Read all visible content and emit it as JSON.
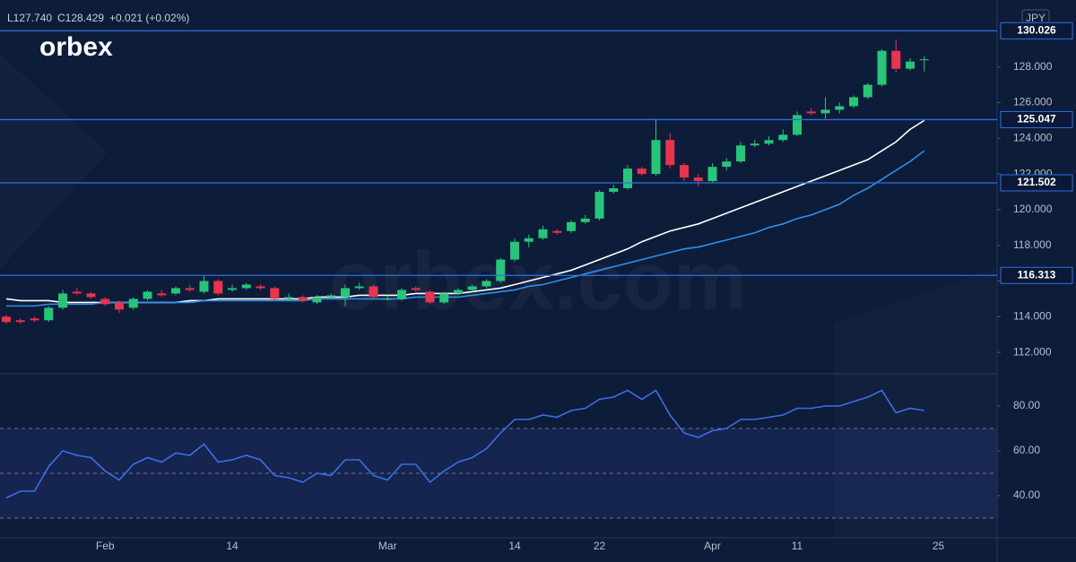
{
  "chart_data": [
    {
      "type": "candlestick",
      "ohlc": [
        "L127.740",
        "C128.429",
        "+0.021 (+0.02%)"
      ],
      "logo": "orbex",
      "watermark": "orbex.com",
      "currency": "JPY",
      "categories": [
        null,
        null,
        null,
        null,
        null,
        null,
        null,
        "Feb",
        null,
        null,
        null,
        null,
        null,
        null,
        null,
        null,
        "14",
        null,
        null,
        null,
        null,
        null,
        null,
        null,
        null,
        null,
        null,
        "Mar",
        null,
        null,
        null,
        null,
        null,
        null,
        null,
        null,
        "14",
        null,
        null,
        null,
        null,
        null,
        "22",
        null,
        null,
        null,
        null,
        null,
        null,
        null,
        "Apr",
        null,
        null,
        null,
        null,
        null,
        "11",
        null,
        null,
        null,
        null,
        null,
        null,
        null,
        null,
        null,
        "25"
      ],
      "open": [
        114.0,
        113.8,
        113.9,
        113.8,
        114.5,
        115.4,
        115.3,
        115.0,
        114.8,
        114.5,
        115.0,
        115.3,
        115.3,
        115.6,
        115.4,
        116.0,
        115.5,
        115.6,
        115.7,
        115.6,
        115.0,
        115.1,
        114.8,
        115.1,
        115.1,
        115.6,
        115.7,
        115.0,
        115.0,
        115.6,
        115.4,
        114.8,
        115.3,
        115.5,
        115.7,
        116.0,
        117.2,
        118.2,
        118.4,
        118.8,
        118.8,
        119.3,
        119.5,
        121.0,
        121.2,
        122.3,
        122.0,
        123.9,
        122.5,
        121.8,
        121.6,
        122.4,
        122.7,
        123.6,
        123.7,
        123.9,
        124.2,
        125.5,
        125.4,
        125.6,
        125.8,
        126.3,
        127.0,
        128.9,
        127.9,
        128.4,
        null
      ],
      "high": [
        114.1,
        113.9,
        114.0,
        114.6,
        115.5,
        115.6,
        115.4,
        115.1,
        114.9,
        115.1,
        115.5,
        115.5,
        115.7,
        115.8,
        116.3,
        116.1,
        115.8,
        115.9,
        115.8,
        115.7,
        115.3,
        115.2,
        115.2,
        115.3,
        115.8,
        115.9,
        115.8,
        115.2,
        115.6,
        115.7,
        115.5,
        115.4,
        115.6,
        115.8,
        116.1,
        117.3,
        118.4,
        118.6,
        119.1,
        118.9,
        119.4,
        119.7,
        121.1,
        121.4,
        122.5,
        122.4,
        125.1,
        124.3,
        122.6,
        122.0,
        122.6,
        122.9,
        123.8,
        123.9,
        124.1,
        124.5,
        125.5,
        125.7,
        126.3,
        126.0,
        126.4,
        127.1,
        129.0,
        129.5,
        128.5,
        128.6,
        null
      ],
      "low": [
        113.6,
        113.6,
        113.7,
        113.7,
        114.4,
        115.2,
        115.0,
        114.6,
        114.2,
        114.4,
        114.9,
        115.1,
        115.2,
        115.4,
        115.3,
        115.2,
        115.4,
        115.5,
        115.5,
        114.9,
        114.9,
        114.8,
        114.7,
        115.0,
        114.6,
        115.5,
        115.0,
        114.9,
        114.9,
        115.4,
        114.7,
        114.7,
        115.2,
        115.4,
        115.6,
        115.9,
        117.1,
        117.9,
        118.3,
        118.6,
        118.7,
        119.2,
        119.4,
        120.9,
        121.1,
        121.9,
        121.9,
        122.3,
        121.6,
        121.3,
        121.5,
        122.2,
        122.6,
        123.5,
        123.6,
        123.8,
        124.1,
        125.3,
        125.1,
        125.4,
        125.7,
        126.2,
        126.9,
        127.7,
        127.8,
        127.74,
        null
      ],
      "close": [
        113.7,
        113.7,
        113.8,
        114.5,
        115.3,
        115.3,
        115.1,
        114.7,
        114.4,
        115.0,
        115.4,
        115.2,
        115.6,
        115.5,
        116.0,
        115.3,
        115.6,
        115.8,
        115.6,
        115.0,
        115.1,
        114.9,
        115.1,
        115.2,
        115.6,
        115.7,
        115.1,
        115.0,
        115.5,
        115.5,
        114.8,
        115.3,
        115.5,
        115.7,
        116.0,
        117.2,
        118.2,
        118.4,
        118.9,
        118.7,
        119.3,
        119.5,
        121.0,
        121.2,
        122.3,
        122.0,
        123.9,
        122.5,
        121.8,
        121.6,
        122.4,
        122.7,
        123.6,
        123.7,
        123.9,
        124.2,
        125.3,
        125.4,
        125.6,
        125.8,
        126.3,
        127.0,
        128.9,
        127.9,
        128.3,
        128.429,
        null
      ],
      "up_color": "#27c47a",
      "down_color": "#e8344e",
      "series": [
        {
          "color": "#ffffff",
          "values": [
            115.0,
            114.9,
            114.9,
            114.9,
            114.8,
            114.8,
            114.8,
            114.8,
            114.8,
            114.8,
            114.8,
            114.8,
            114.8,
            114.9,
            114.9,
            115.0,
            115.0,
            115.0,
            115.0,
            115.0,
            115.0,
            115.0,
            115.1,
            115.1,
            115.1,
            115.2,
            115.2,
            115.2,
            115.2,
            115.3,
            115.3,
            115.3,
            115.3,
            115.4,
            115.5,
            115.6,
            115.8,
            116.0,
            116.2,
            116.4,
            116.6,
            116.9,
            117.2,
            117.5,
            117.8,
            118.2,
            118.5,
            118.8,
            119.0,
            119.2,
            119.5,
            119.8,
            120.1,
            120.4,
            120.7,
            121.0,
            121.3,
            121.6,
            121.9,
            122.2,
            122.5,
            122.8,
            123.3,
            123.8,
            124.5,
            125.0,
            null
          ]
        },
        {
          "color": "#2f8fe8",
          "values": [
            114.6,
            114.6,
            114.6,
            114.7,
            114.7,
            114.7,
            114.7,
            114.8,
            114.8,
            114.8,
            114.8,
            114.8,
            114.8,
            114.8,
            114.9,
            114.9,
            114.9,
            114.9,
            114.9,
            114.9,
            114.9,
            114.9,
            115.0,
            115.0,
            115.0,
            115.0,
            115.0,
            115.0,
            115.0,
            115.1,
            115.1,
            115.1,
            115.1,
            115.2,
            115.3,
            115.4,
            115.5,
            115.7,
            115.8,
            116.0,
            116.2,
            116.4,
            116.6,
            116.8,
            117.0,
            117.2,
            117.4,
            117.6,
            117.8,
            117.9,
            118.1,
            118.3,
            118.5,
            118.7,
            119.0,
            119.2,
            119.5,
            119.7,
            120.0,
            120.3,
            120.8,
            121.2,
            121.7,
            122.2,
            122.7,
            123.3,
            null
          ]
        }
      ],
      "levels": [
        130.026,
        125.047,
        121.502,
        116.313
      ],
      "level_color": "#2f6fe0",
      "ylim": [
        110.8,
        131.5
      ],
      "yticks": [
        {
          "value": 112,
          "label": "112.000"
        },
        {
          "value": 114,
          "label": "114.000"
        },
        {
          "value": 116,
          "label": "116.000"
        },
        {
          "value": 118,
          "label": "118.000"
        },
        {
          "value": 120,
          "label": "120.000"
        },
        {
          "value": 122,
          "label": "122.000"
        },
        {
          "value": 124,
          "label": "124.000"
        },
        {
          "value": 126,
          "label": "126.000"
        },
        {
          "value": 128,
          "label": "128.000"
        }
      ]
    },
    {
      "type": "line",
      "color": "#3d6ee8",
      "values": [
        39,
        42,
        42,
        53,
        60,
        58,
        57,
        51,
        47,
        54,
        57,
        55,
        59,
        58,
        63,
        55,
        56,
        58,
        56,
        49,
        48,
        46,
        50,
        49,
        56,
        56,
        49,
        47,
        54,
        54,
        46,
        51,
        55,
        57,
        61,
        68,
        74,
        74,
        76,
        75,
        78,
        79,
        83,
        84,
        87,
        83,
        87,
        76,
        68,
        66,
        69,
        70,
        74,
        74,
        75,
        76,
        79,
        79,
        80,
        80,
        82,
        84,
        87,
        77,
        79,
        78,
        null
      ],
      "guides": [
        70,
        50,
        30
      ],
      "ylim": [
        21.2,
        94.4
      ],
      "yticks": [
        {
          "value": 40,
          "label": "40.00"
        },
        {
          "value": 60,
          "label": "60.00"
        },
        {
          "value": 80,
          "label": "80.00"
        }
      ]
    }
  ]
}
